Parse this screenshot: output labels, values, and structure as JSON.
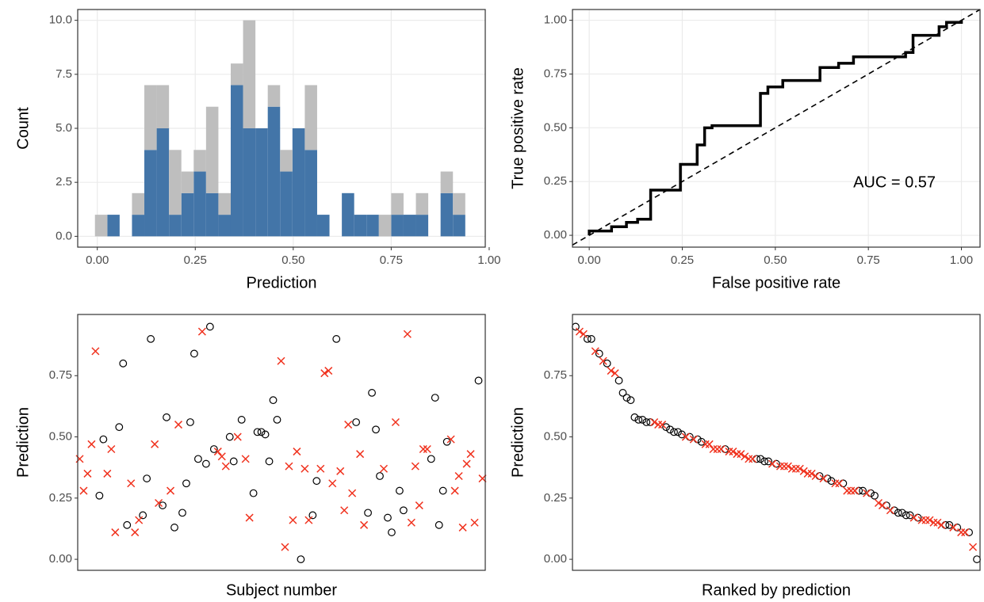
{
  "chart_data": [
    {
      "type": "histogram",
      "xlabel": "Prediction",
      "ylabel": "Count",
      "bins": [
        -0.006,
        0.0255,
        0.057,
        0.0885,
        0.12,
        0.1515,
        0.183,
        0.2145,
        0.246,
        0.2775,
        0.309,
        0.3405,
        0.372,
        0.4035,
        0.435,
        0.4665,
        0.498,
        0.5295,
        0.561,
        0.5925,
        0.624,
        0.6555,
        0.687,
        0.7185,
        0.75,
        0.7815,
        0.813,
        0.8445,
        0.876,
        0.9075,
        0.939
      ],
      "series": [
        {
          "color": "#4375a8",
          "values": [
            0,
            1,
            0,
            1,
            4,
            5,
            1,
            2,
            3,
            2,
            1,
            7,
            5,
            5,
            6,
            3,
            5,
            4,
            1,
            0,
            2,
            1,
            1,
            0,
            1,
            1,
            1,
            0,
            2,
            1
          ]
        },
        {
          "color": "#bebebe",
          "values": [
            1,
            0,
            0,
            1,
            3,
            2,
            3,
            1,
            1,
            4,
            1,
            1,
            5,
            0,
            1,
            1,
            0,
            3,
            0,
            0,
            0,
            0,
            0,
            1,
            1,
            0,
            1,
            0,
            1,
            1
          ]
        }
      ],
      "xlim": [
        -0.05,
        0.99
      ],
      "xticks": [
        {
          "value": 0,
          "label": "0.00"
        },
        0.25,
        {
          "value": 0.5,
          "label": "0.50"
        },
        0.75,
        {
          "value": 1,
          "label": "1.00"
        }
      ],
      "ylim": [
        -0.5,
        10.5
      ],
      "yticks": [
        {
          "value": 0,
          "label": "0.0"
        },
        2.5,
        {
          "value": 5,
          "label": "5.0"
        },
        7.5,
        {
          "value": 10,
          "label": "10.0"
        }
      ],
      "grid": true
    },
    {
      "type": "line",
      "xlabel": "False positive rate",
      "ylabel": "True positive rate",
      "annotation": "AUC = 0.57",
      "x": [
        0,
        0,
        0.06,
        0.06,
        0.1,
        0.1,
        0.13,
        0.13,
        0.165,
        0.165,
        0.245,
        0.245,
        0.29,
        0.29,
        0.31,
        0.31,
        0.33,
        0.33,
        0.46,
        0.46,
        0.48,
        0.48,
        0.52,
        0.52,
        0.62,
        0.62,
        0.67,
        0.67,
        0.71,
        0.71,
        0.85,
        0.85,
        0.87,
        0.87,
        0.94,
        0.94,
        0.96,
        0.96,
        1,
        1
      ],
      "series": [
        {
          "color": "#000000",
          "values": [
            0,
            0.02,
            0.02,
            0.04,
            0.04,
            0.06,
            0.06,
            0.075,
            0.075,
            0.21,
            0.21,
            0.33,
            0.33,
            0.42,
            0.42,
            0.5,
            0.5,
            0.51,
            0.51,
            0.66,
            0.66,
            0.69,
            0.69,
            0.72,
            0.72,
            0.78,
            0.78,
            0.8,
            0.8,
            0.83,
            0.83,
            0.85,
            0.85,
            0.93,
            0.93,
            0.97,
            0.97,
            0.99,
            0.99,
            1
          ]
        }
      ],
      "xlim": [
        -0.045,
        1.05
      ],
      "xticks": [
        {
          "value": 0,
          "label": "0.00"
        },
        0.25,
        {
          "value": 0.5,
          "label": "0.50"
        },
        0.75,
        {
          "value": 1,
          "label": "1.00"
        }
      ],
      "ylim": [
        -0.055,
        1.05
      ],
      "yticks": [
        {
          "value": 0,
          "label": "0.00"
        },
        0.25,
        {
          "value": 0.5,
          "label": "0.50"
        },
        0.75,
        {
          "value": 1,
          "label": "1.00"
        }
      ],
      "grid": true
    },
    {
      "type": "scatter",
      "xlabel": "Subject number",
      "ylabel": "Prediction",
      "series": [
        {
          "marker": "circle",
          "color": "#000000",
          "x": [
            6,
            7,
            11,
            12,
            13,
            17,
            18,
            19,
            22,
            23,
            25,
            27,
            28,
            29,
            30,
            31,
            33,
            34,
            35,
            39,
            40,
            42,
            45,
            46,
            47,
            48,
            49,
            50,
            51,
            57,
            60,
            61,
            66,
            71,
            74,
            75,
            76,
            77,
            79,
            80,
            82,
            83,
            90,
            91,
            92,
            93,
            94,
            102
          ],
          "values": [
            0.26,
            0.49,
            0.54,
            0.8,
            0.14,
            0.18,
            0.33,
            0.9,
            0.22,
            0.58,
            0.13,
            0.19,
            0.31,
            0.56,
            0.84,
            0.41,
            0.39,
            0.95,
            0.45,
            0.5,
            0.4,
            0.57,
            0.27,
            0.52,
            0.52,
            0.51,
            0.4,
            0.65,
            0.57,
            0.0,
            0.18,
            0.32,
            0.9,
            0.56,
            0.19,
            0.68,
            0.53,
            0.34,
            0.17,
            0.11,
            0.28,
            0.2,
            0.41,
            0.66,
            0.14,
            0.28,
            0.48,
            0.73
          ]
        },
        {
          "marker": "cross",
          "color": "#f0321e",
          "x": [
            1,
            2,
            3,
            4,
            5,
            8,
            9,
            10,
            14,
            15,
            16,
            20,
            21,
            24,
            26,
            32,
            36,
            37,
            38,
            41,
            43,
            44,
            52,
            53,
            54,
            55,
            56,
            58,
            59,
            62,
            63,
            64,
            65,
            67,
            68,
            69,
            70,
            72,
            73,
            78,
            81,
            84,
            85,
            86,
            87,
            88,
            89,
            95,
            96,
            97,
            98,
            99,
            100,
            101,
            103
          ],
          "values": [
            0.41,
            0.28,
            0.35,
            0.47,
            0.85,
            0.35,
            0.45,
            0.11,
            0.31,
            0.11,
            0.16,
            0.47,
            0.23,
            0.28,
            0.55,
            0.93,
            0.44,
            0.42,
            0.38,
            0.5,
            0.41,
            0.17,
            0.81,
            0.05,
            0.38,
            0.16,
            0.44,
            0.37,
            0.16,
            0.37,
            0.76,
            0.77,
            0.31,
            0.36,
            0.2,
            0.55,
            0.27,
            0.43,
            0.14,
            0.37,
            0.56,
            0.92,
            0.15,
            0.38,
            0.22,
            0.45,
            0.45,
            0.49,
            0.28,
            0.34,
            0.13,
            0.39,
            0.43,
            0.15,
            0.33
          ]
        }
      ],
      "xlim": [
        0.5,
        103.7
      ],
      "ylim": [
        -0.045,
        1.0
      ],
      "yticks": [
        {
          "value": 0,
          "label": "0.00"
        },
        0.25,
        {
          "value": 0.5,
          "label": "0.50"
        },
        0.75
      ],
      "grid": false
    },
    {
      "type": "scatter",
      "xlabel": "Ranked by prediction",
      "ylabel": "Prediction",
      "series": [
        {
          "marker": "circle",
          "color": "#000000",
          "x": [
            1,
            4,
            5,
            7,
            9,
            12,
            13,
            14,
            15,
            16,
            17,
            18,
            19,
            20,
            24,
            25,
            26,
            27,
            28,
            30,
            32,
            33,
            39,
            47,
            48,
            49,
            50,
            52,
            63,
            65,
            66,
            69,
            73,
            74,
            76,
            77,
            80,
            82,
            83,
            84,
            85,
            86,
            88,
            95,
            96,
            98,
            101,
            103
          ],
          "values": [
            0.95,
            0.9,
            0.9,
            0.84,
            0.8,
            0.73,
            0.68,
            0.66,
            0.65,
            0.58,
            0.57,
            0.57,
            0.56,
            0.56,
            0.54,
            0.53,
            0.52,
            0.52,
            0.51,
            0.5,
            0.49,
            0.48,
            0.45,
            0.41,
            0.41,
            0.4,
            0.4,
            0.39,
            0.34,
            0.33,
            0.32,
            0.31,
            0.28,
            0.28,
            0.27,
            0.26,
            0.22,
            0.2,
            0.19,
            0.19,
            0.18,
            0.18,
            0.17,
            0.14,
            0.14,
            0.13,
            0.11,
            0.0
          ]
        },
        {
          "marker": "cross",
          "color": "#f0321e",
          "x": [
            2,
            3,
            6,
            8,
            10,
            11,
            21,
            22,
            23,
            29,
            31,
            34,
            35,
            36,
            37,
            38,
            40,
            41,
            42,
            43,
            44,
            45,
            46,
            51,
            53,
            54,
            55,
            56,
            57,
            58,
            59,
            60,
            61,
            62,
            64,
            67,
            68,
            70,
            71,
            72,
            75,
            78,
            79,
            81,
            87,
            89,
            90,
            91,
            92,
            93,
            94,
            97,
            99,
            100,
            102
          ],
          "values": [
            0.93,
            0.92,
            0.85,
            0.81,
            0.77,
            0.76,
            0.56,
            0.55,
            0.55,
            0.5,
            0.49,
            0.47,
            0.47,
            0.45,
            0.45,
            0.45,
            0.44,
            0.44,
            0.43,
            0.43,
            0.42,
            0.41,
            0.41,
            0.39,
            0.38,
            0.38,
            0.38,
            0.37,
            0.37,
            0.37,
            0.36,
            0.35,
            0.35,
            0.34,
            0.33,
            0.31,
            0.31,
            0.28,
            0.28,
            0.28,
            0.27,
            0.23,
            0.22,
            0.2,
            0.17,
            0.16,
            0.16,
            0.16,
            0.15,
            0.15,
            0.14,
            0.13,
            0.11,
            0.11,
            0.05
          ]
        }
      ],
      "xlim": [
        0.2,
        103.8
      ],
      "ylim": [
        -0.045,
        1.0
      ],
      "yticks": [
        {
          "value": 0,
          "label": "0.00"
        },
        0.25,
        {
          "value": 0.5,
          "label": "0.50"
        },
        0.75
      ],
      "grid": false
    }
  ]
}
